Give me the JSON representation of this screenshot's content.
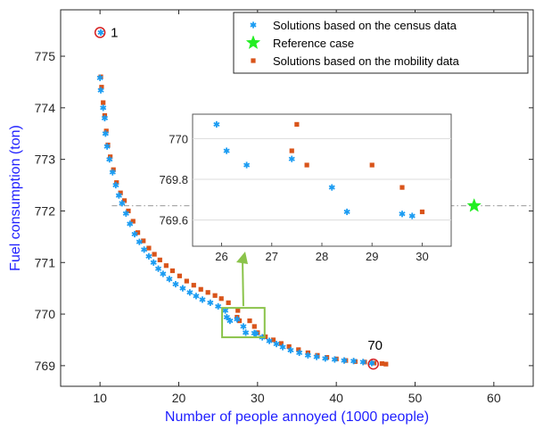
{
  "chart_data": {
    "type": "scatter",
    "xlabel": "Number of people annoyed (1000 people)",
    "ylabel": "Fuel consumption (ton)",
    "xlim": [
      5,
      65
    ],
    "ylim": [
      768.6,
      775.9
    ],
    "xticks": [
      10,
      20,
      30,
      40,
      50,
      60
    ],
    "yticks": [
      769,
      770,
      771,
      772,
      773,
      774,
      775
    ],
    "legend_position": "top-right",
    "legend": [
      {
        "label": "Solutions based on the census data",
        "marker": "asterisk",
        "color": "#1b9cf2"
      },
      {
        "label": "Reference case",
        "marker": "star",
        "color": "#22ee22"
      },
      {
        "label": "Solutions based on the mobility data",
        "marker": "square",
        "color": "#d9541a"
      }
    ],
    "annotations": [
      {
        "text": "1",
        "x": 10.0,
        "y": 775.46
      },
      {
        "text": "70",
        "x": 44.7,
        "y": 769.03
      }
    ],
    "reference_line_y": 772.1,
    "series": [
      {
        "name": "Solutions based on the census data",
        "color": "#1b9cf2",
        "points": [
          [
            10.1,
            775.46
          ],
          [
            10.0,
            774.58
          ],
          [
            10.1,
            774.34
          ],
          [
            10.4,
            774.0
          ],
          [
            10.6,
            773.8
          ],
          [
            10.7,
            773.5
          ],
          [
            10.9,
            773.25
          ],
          [
            11.2,
            773.0
          ],
          [
            11.6,
            772.75
          ],
          [
            12.0,
            772.5
          ],
          [
            12.4,
            772.3
          ],
          [
            12.8,
            772.15
          ],
          [
            13.3,
            771.95
          ],
          [
            13.8,
            771.75
          ],
          [
            14.4,
            771.55
          ],
          [
            15.0,
            771.4
          ],
          [
            15.6,
            771.25
          ],
          [
            16.2,
            771.12
          ],
          [
            16.8,
            771.0
          ],
          [
            17.4,
            770.88
          ],
          [
            18.0,
            770.78
          ],
          [
            18.8,
            770.68
          ],
          [
            19.6,
            770.58
          ],
          [
            20.5,
            770.5
          ],
          [
            21.4,
            770.42
          ],
          [
            22.2,
            770.35
          ],
          [
            23.0,
            770.28
          ],
          [
            24.0,
            770.22
          ],
          [
            25.0,
            770.15
          ],
          [
            25.9,
            770.07
          ],
          [
            26.1,
            769.94
          ],
          [
            26.5,
            769.87
          ],
          [
            27.4,
            769.9
          ],
          [
            28.2,
            769.76
          ],
          [
            28.5,
            769.64
          ],
          [
            29.6,
            769.63
          ],
          [
            29.8,
            769.62
          ],
          [
            30.6,
            769.55
          ],
          [
            31.5,
            769.48
          ],
          [
            32.4,
            769.42
          ],
          [
            33.2,
            769.36
          ],
          [
            34.2,
            769.3
          ],
          [
            35.3,
            769.25
          ],
          [
            36.4,
            769.2
          ],
          [
            37.5,
            769.17
          ],
          [
            38.6,
            769.14
          ],
          [
            39.8,
            769.12
          ],
          [
            41.0,
            769.1
          ],
          [
            42.2,
            769.09
          ],
          [
            43.4,
            769.07
          ],
          [
            44.5,
            769.05
          ]
        ]
      },
      {
        "name": "Reference case",
        "color": "#22ee22",
        "points": [
          [
            57.5,
            772.1
          ]
        ]
      },
      {
        "name": "Solutions based on the mobility data",
        "color": "#d9541a",
        "points": [
          [
            10.1,
            774.6
          ],
          [
            10.2,
            774.4
          ],
          [
            10.4,
            774.1
          ],
          [
            10.6,
            773.85
          ],
          [
            10.8,
            773.55
          ],
          [
            11.0,
            773.28
          ],
          [
            11.3,
            773.05
          ],
          [
            11.7,
            772.8
          ],
          [
            12.1,
            772.55
          ],
          [
            12.6,
            772.35
          ],
          [
            13.1,
            772.2
          ],
          [
            13.6,
            772.0
          ],
          [
            14.2,
            771.8
          ],
          [
            14.8,
            771.58
          ],
          [
            15.5,
            771.42
          ],
          [
            16.2,
            771.28
          ],
          [
            16.9,
            771.16
          ],
          [
            17.6,
            771.05
          ],
          [
            18.4,
            770.94
          ],
          [
            19.2,
            770.84
          ],
          [
            20.1,
            770.74
          ],
          [
            21.0,
            770.64
          ],
          [
            21.9,
            770.56
          ],
          [
            22.8,
            770.48
          ],
          [
            23.7,
            770.42
          ],
          [
            24.6,
            770.36
          ],
          [
            25.4,
            770.3
          ],
          [
            26.3,
            770.22
          ],
          [
            27.4,
            769.94
          ],
          [
            27.5,
            770.07
          ],
          [
            27.7,
            769.87
          ],
          [
            29.0,
            769.87
          ],
          [
            29.6,
            769.76
          ],
          [
            30.0,
            769.64
          ],
          [
            31.0,
            769.56
          ],
          [
            32.0,
            769.5
          ],
          [
            33.0,
            769.43
          ],
          [
            34.0,
            769.37
          ],
          [
            35.2,
            769.31
          ],
          [
            36.4,
            769.25
          ],
          [
            37.6,
            769.2
          ],
          [
            38.8,
            769.16
          ],
          [
            40.0,
            769.13
          ],
          [
            41.2,
            769.1
          ],
          [
            42.4,
            769.08
          ],
          [
            43.6,
            769.07
          ],
          [
            44.8,
            769.05
          ],
          [
            45.8,
            769.04
          ],
          [
            46.3,
            769.03
          ]
        ]
      }
    ],
    "inset": {
      "xlim": [
        25.6,
        30.4
      ],
      "ylim": [
        769.55,
        770.12
      ],
      "xticks": [
        26,
        27,
        28,
        29,
        30
      ],
      "yticks": [
        769.6,
        769.8,
        770
      ],
      "highlight_box": {
        "x": [
          25.5,
          30.9
        ],
        "y": [
          769.55,
          770.12
        ]
      }
    }
  }
}
